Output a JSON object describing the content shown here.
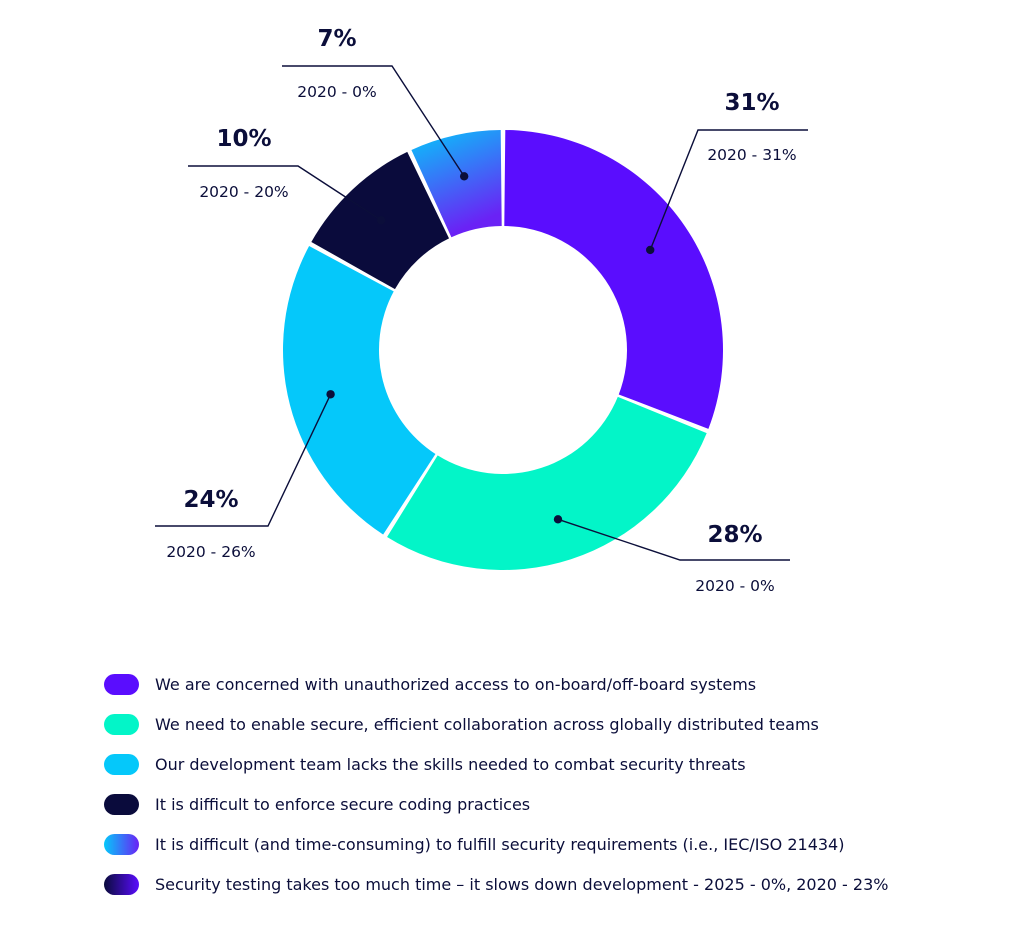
{
  "chart_data": {
    "type": "pie",
    "variant": "donut",
    "title": "",
    "slices": [
      {
        "label": "We are concerned with unauthorized access to on-board/off-board systems",
        "value": 31,
        "value_label": "31%",
        "previous_label": "2020 - 31%",
        "color": "#5a0dfe",
        "color_end": "#5a0dfe",
        "callout_side": "right"
      },
      {
        "label": "We need to enable secure, efficient collaboration across globally distributed teams",
        "value": 28,
        "value_label": "28%",
        "previous_label": "2020 - 0%",
        "color": "#03f5c8",
        "color_end": "#03f5c8",
        "callout_side": "right"
      },
      {
        "label": "Our development team lacks the skills needed to combat security threats",
        "value": 24,
        "value_label": "24%",
        "previous_label": "2020 - 26%",
        "color": "#05c8fa",
        "color_end": "#05c8fa",
        "callout_side": "left"
      },
      {
        "label": "It is difficult to enforce secure coding practices",
        "value": 10,
        "value_label": "10%",
        "previous_label": "2020 - 20%",
        "color": "#0a0b3c",
        "color_end": "#0a0b3c",
        "callout_side": "left"
      },
      {
        "label": "It is difficult (and time-consuming) to fulfill security requirements (i.e., IEC/ISO 21434)",
        "value": 7,
        "value_label": "7%",
        "previous_label": "2020 - 0%",
        "color": "#05c8fa",
        "color_end": "#6a22f5",
        "callout_side": "left"
      }
    ],
    "legend": [
      {
        "label": "We are concerned with unauthorized access to on-board/off-board systems",
        "color": "#5a0dfe",
        "color_end": "#5a0dfe"
      },
      {
        "label": "We need to enable secure, efficient collaboration across globally distributed teams",
        "color": "#03f5c8",
        "color_end": "#03f5c8"
      },
      {
        "label": "Our development team lacks the skills needed to combat security threats",
        "color": "#05c8fa",
        "color_end": "#05c8fa"
      },
      {
        "label": "It is difficult to enforce secure coding practices",
        "color": "#0a0b3c",
        "color_end": "#0a0b3c"
      },
      {
        "label": "It is difficult (and time-consuming) to fulfill security requirements (i.e., IEC/ISO 21434)",
        "color": "#05c8fa",
        "color_end": "#6a22f5"
      },
      {
        "label": "Security testing takes too much time – it slows down development - 2025 - 0%, 2020 - 23%",
        "color": "#0a0b3c",
        "color_end": "#5a0dfe"
      }
    ],
    "legend_position": "bottom"
  }
}
